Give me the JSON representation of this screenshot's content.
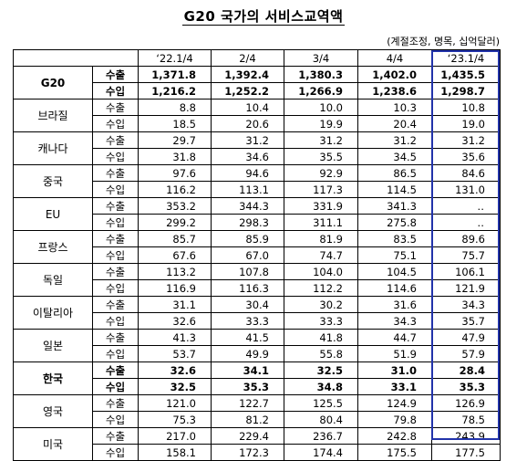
{
  "title": "G20 국가의 서비스교역액",
  "note": "(계절조정, 명목, 십억달러)",
  "quarters": [
    "‘22.1/4",
    "2/4",
    "3/4",
    "4/4",
    "‘23.1/4"
  ],
  "labels": {
    "export": "수출",
    "import": "수입"
  },
  "countries": [
    {
      "name": "G20",
      "bold": true,
      "export": [
        "1,371.8",
        "1,392.4",
        "1,380.3",
        "1,402.0",
        "1,435.5"
      ],
      "import": [
        "1,216.2",
        "1,252.2",
        "1,266.9",
        "1,238.6",
        "1,298.7"
      ]
    },
    {
      "name": "브라질",
      "bold": false,
      "export": [
        "8.8",
        "10.4",
        "10.0",
        "10.3",
        "10.8"
      ],
      "import": [
        "18.5",
        "20.6",
        "19.9",
        "20.4",
        "19.0"
      ]
    },
    {
      "name": "캐나다",
      "bold": false,
      "export": [
        "29.7",
        "31.2",
        "31.2",
        "31.2",
        "31.2"
      ],
      "import": [
        "31.8",
        "34.6",
        "35.5",
        "34.5",
        "35.6"
      ]
    },
    {
      "name": "중국",
      "bold": false,
      "export": [
        "97.6",
        "94.6",
        "92.9",
        "86.5",
        "84.6"
      ],
      "import": [
        "116.2",
        "113.1",
        "117.3",
        "114.5",
        "131.0"
      ]
    },
    {
      "name": "EU",
      "bold": false,
      "export": [
        "353.2",
        "344.3",
        "331.9",
        "341.3",
        "‥"
      ],
      "import": [
        "299.2",
        "298.3",
        "311.1",
        "275.8",
        "‥"
      ]
    },
    {
      "name": "프랑스",
      "bold": false,
      "export": [
        "85.7",
        "85.9",
        "81.9",
        "83.5",
        "89.6"
      ],
      "import": [
        "67.6",
        "67.0",
        "74.7",
        "75.1",
        "75.7"
      ]
    },
    {
      "name": "독일",
      "bold": false,
      "export": [
        "113.2",
        "107.8",
        "104.0",
        "104.5",
        "106.1"
      ],
      "import": [
        "116.9",
        "116.3",
        "112.2",
        "114.6",
        "121.9"
      ]
    },
    {
      "name": "이탈리아",
      "bold": false,
      "export": [
        "31.1",
        "30.4",
        "30.2",
        "31.6",
        "34.3"
      ],
      "import": [
        "32.6",
        "33.3",
        "33.3",
        "34.3",
        "35.7"
      ]
    },
    {
      "name": "일본",
      "bold": false,
      "export": [
        "41.3",
        "41.5",
        "41.8",
        "44.7",
        "47.9"
      ],
      "import": [
        "53.7",
        "49.9",
        "55.8",
        "51.9",
        "57.9"
      ]
    },
    {
      "name": "한국",
      "bold": true,
      "export": [
        "32.6",
        "34.1",
        "32.5",
        "31.0",
        "28.4"
      ],
      "import": [
        "32.5",
        "35.3",
        "34.8",
        "33.1",
        "35.3"
      ]
    },
    {
      "name": "영국",
      "bold": false,
      "export": [
        "121.0",
        "122.7",
        "125.5",
        "124.9",
        "126.9"
      ],
      "import": [
        "75.3",
        "81.2",
        "80.4",
        "79.8",
        "78.5"
      ]
    },
    {
      "name": "미국",
      "bold": false,
      "export": [
        "217.0",
        "229.4",
        "236.7",
        "242.8",
        "243.9"
      ],
      "import": [
        "158.1",
        "172.3",
        "174.4",
        "175.5",
        "177.5"
      ]
    }
  ],
  "colors": {
    "highlight_border": "#2233aa"
  }
}
